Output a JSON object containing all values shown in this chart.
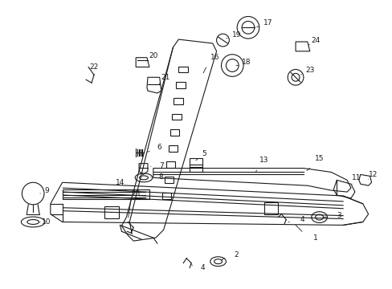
{
  "bg_color": "#ffffff",
  "fig_width": 4.89,
  "fig_height": 3.6,
  "dpi": 100,
  "color": "#1a1a1a",
  "lw": 0.8
}
